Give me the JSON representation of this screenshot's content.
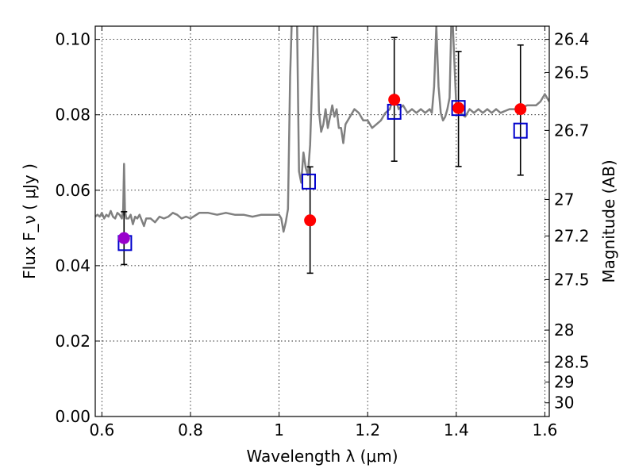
{
  "chart_data": {
    "type": "scatter",
    "title": "",
    "xlabel": "Wavelength λ (μm)",
    "ylabel": "Flux F_ν ( μJy )",
    "ylabel_right": "Magnitude (AB)",
    "xlim": [
      0.585,
      1.61
    ],
    "ylim": [
      0.0,
      0.1035
    ],
    "x_ticks": [
      {
        "value": 0.6,
        "label": "0.6"
      },
      {
        "value": 0.8,
        "label": "0.8"
      },
      {
        "value": 1.0,
        "label": "1"
      },
      {
        "value": 1.2,
        "label": "1.2"
      },
      {
        "value": 1.4,
        "label": "1.4"
      },
      {
        "value": 1.6,
        "label": "1.6"
      }
    ],
    "y_ticks": [
      {
        "value": 0.0,
        "label": "0.00"
      },
      {
        "value": 0.02,
        "label": "0.02"
      },
      {
        "value": 0.04,
        "label": "0.04"
      },
      {
        "value": 0.06,
        "label": "0.06"
      },
      {
        "value": 0.08,
        "label": "0.08"
      },
      {
        "value": 0.1,
        "label": "0.10"
      }
    ],
    "y2_ticks": [
      {
        "value": 26.4,
        "label": "26.4"
      },
      {
        "value": 26.5,
        "label": "26.5"
      },
      {
        "value": 26.7,
        "label": "26.7"
      },
      {
        "value": 27.0,
        "label": "27"
      },
      {
        "value": 27.2,
        "label": "27.2"
      },
      {
        "value": 27.5,
        "label": "27.5"
      },
      {
        "value": 28.0,
        "label": "28"
      },
      {
        "value": 28.5,
        "label": "28.5"
      },
      {
        "value": 29.0,
        "label": "29"
      },
      {
        "value": 30.0,
        "label": "30"
      }
    ],
    "grid": true,
    "colors": {
      "spectrum": "#808080",
      "observed": "#ff0000",
      "model": "#0000cc",
      "overlap": "#9900cc",
      "errorbar": "#000000"
    },
    "spectrum": {
      "x": [
        0.585,
        0.59,
        0.595,
        0.6,
        0.605,
        0.61,
        0.615,
        0.62,
        0.625,
        0.63,
        0.635,
        0.64,
        0.645,
        0.648,
        0.65,
        0.652,
        0.655,
        0.66,
        0.665,
        0.67,
        0.675,
        0.68,
        0.685,
        0.69,
        0.695,
        0.7,
        0.71,
        0.72,
        0.73,
        0.74,
        0.75,
        0.76,
        0.77,
        0.78,
        0.79,
        0.8,
        0.82,
        0.84,
        0.86,
        0.88,
        0.9,
        0.92,
        0.94,
        0.96,
        0.98,
        1.0,
        1.005,
        1.01,
        1.015,
        1.02,
        1.025,
        1.03,
        1.035,
        1.04,
        1.045,
        1.05,
        1.055,
        1.06,
        1.065,
        1.07,
        1.075,
        1.08,
        1.085,
        1.09,
        1.095,
        1.1,
        1.105,
        1.11,
        1.115,
        1.12,
        1.125,
        1.13,
        1.135,
        1.14,
        1.145,
        1.15,
        1.16,
        1.17,
        1.18,
        1.19,
        1.2,
        1.21,
        1.22,
        1.23,
        1.24,
        1.25,
        1.26,
        1.27,
        1.28,
        1.29,
        1.3,
        1.31,
        1.32,
        1.33,
        1.34,
        1.345,
        1.35,
        1.355,
        1.36,
        1.365,
        1.37,
        1.375,
        1.38,
        1.385,
        1.39,
        1.4,
        1.41,
        1.42,
        1.43,
        1.44,
        1.45,
        1.46,
        1.47,
        1.48,
        1.49,
        1.5,
        1.52,
        1.54,
        1.56,
        1.58,
        1.59,
        1.6,
        1.61
      ],
      "y": [
        0.053,
        0.0535,
        0.053,
        0.054,
        0.0525,
        0.0535,
        0.053,
        0.0545,
        0.053,
        0.0525,
        0.054,
        0.0535,
        0.0525,
        0.055,
        0.067,
        0.0545,
        0.0525,
        0.0525,
        0.0535,
        0.051,
        0.053,
        0.0525,
        0.0535,
        0.052,
        0.0505,
        0.0525,
        0.0525,
        0.0515,
        0.053,
        0.0525,
        0.053,
        0.054,
        0.0535,
        0.0525,
        0.053,
        0.0525,
        0.054,
        0.054,
        0.0535,
        0.054,
        0.0535,
        0.0535,
        0.053,
        0.0535,
        0.0535,
        0.0535,
        0.0525,
        0.049,
        0.0515,
        0.055,
        0.09,
        0.11,
        0.11,
        0.11,
        0.065,
        0.062,
        0.07,
        0.066,
        0.064,
        0.072,
        0.09,
        0.11,
        0.11,
        0.081,
        0.0755,
        0.0775,
        0.0815,
        0.0765,
        0.0795,
        0.0825,
        0.0795,
        0.0815,
        0.0765,
        0.0765,
        0.0725,
        0.0775,
        0.0795,
        0.0815,
        0.0805,
        0.0785,
        0.0785,
        0.0765,
        0.0775,
        0.0785,
        0.0805,
        0.0815,
        0.0855,
        0.0815,
        0.0825,
        0.0805,
        0.0815,
        0.0805,
        0.0815,
        0.0805,
        0.0815,
        0.0805,
        0.0875,
        0.1035,
        0.0875,
        0.0805,
        0.0785,
        0.0795,
        0.0815,
        0.0845,
        0.11,
        0.0825,
        0.0805,
        0.0795,
        0.0815,
        0.0805,
        0.0815,
        0.0805,
        0.0815,
        0.0805,
        0.0815,
        0.0805,
        0.0815,
        0.0815,
        0.0825,
        0.0825,
        0.0835,
        0.0855,
        0.0835
      ]
    },
    "observed": [
      {
        "x": 0.65,
        "y": 0.0473,
        "yerr_low": 0.0403,
        "yerr_high": 0.0543
      },
      {
        "x": 1.07,
        "y": 0.052,
        "yerr_low": 0.038,
        "yerr_high": 0.0662
      },
      {
        "x": 1.26,
        "y": 0.084,
        "yerr_low": 0.0677,
        "yerr_high": 0.1005
      },
      {
        "x": 1.405,
        "y": 0.0818,
        "yerr_low": 0.0663,
        "yerr_high": 0.0968
      },
      {
        "x": 1.545,
        "y": 0.0815,
        "yerr_low": 0.064,
        "yerr_high": 0.0985
      }
    ],
    "model": [
      {
        "x": 0.652,
        "y": 0.046
      },
      {
        "x": 1.067,
        "y": 0.0623
      },
      {
        "x": 1.26,
        "y": 0.0808
      },
      {
        "x": 1.405,
        "y": 0.0818
      },
      {
        "x": 1.545,
        "y": 0.0758
      }
    ]
  }
}
